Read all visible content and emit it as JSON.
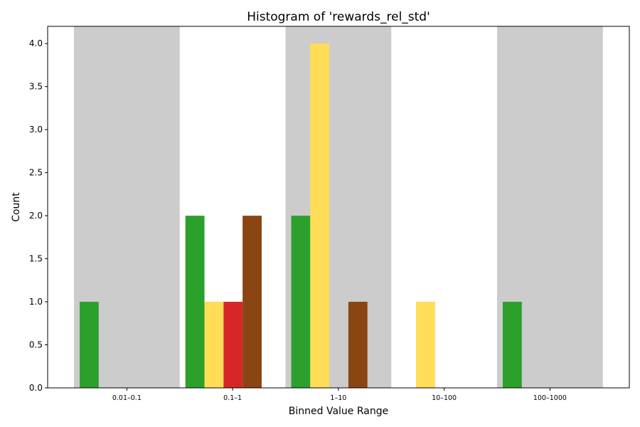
{
  "chart_data": {
    "type": "bar",
    "title": "Histogram of 'rewards_rel_std'",
    "xlabel": "Binned Value Range",
    "ylabel": "Count",
    "categories": [
      "0.01–0.1",
      "0.1–1",
      "1–10",
      "10–100",
      "100–1000"
    ],
    "ylim": [
      0,
      4.2
    ],
    "yticks": [
      "0.0",
      "0.5",
      "1.0",
      "1.5",
      "2.0",
      "2.5",
      "3.0",
      "3.5",
      "4.0"
    ],
    "grid": false,
    "legend": "none",
    "band_color": "#cccccc",
    "shaded_categories": [
      0,
      2,
      4
    ],
    "series": [
      {
        "color": "#2ca02c",
        "values": [
          1,
          2,
          2,
          0,
          1
        ]
      },
      {
        "color": "#ffdd57",
        "values": [
          0,
          1,
          4,
          1,
          0
        ]
      },
      {
        "color": "#d62728",
        "values": [
          0,
          1,
          0,
          0,
          0
        ]
      },
      {
        "color": "#8b4513",
        "values": [
          0,
          2,
          1,
          0,
          0
        ]
      }
    ]
  }
}
